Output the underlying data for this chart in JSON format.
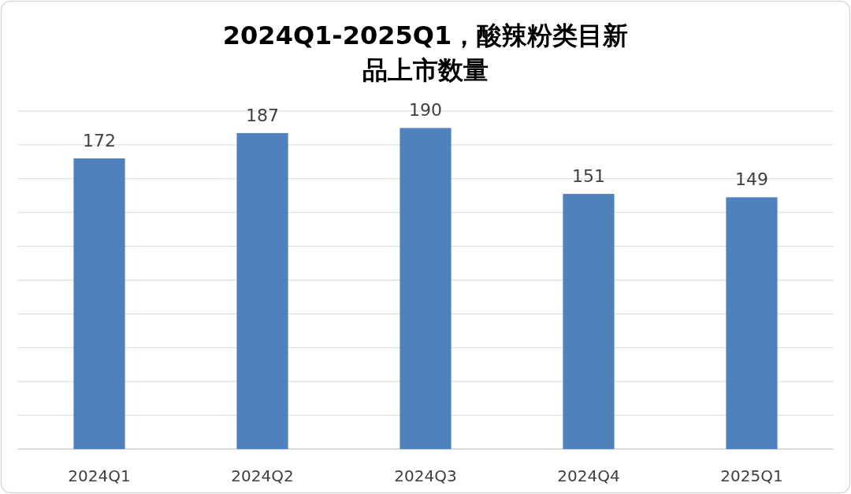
{
  "chart_data": {
    "type": "bar",
    "title": "2024Q1-2025Q1，酸辣粉类目新品上市数量",
    "categories": [
      "2024Q1",
      "2024Q2",
      "2024Q3",
      "2024Q4",
      "2025Q1"
    ],
    "values": [
      172,
      187,
      190,
      151,
      149
    ],
    "color": "#4f81bd",
    "ylim": [
      0,
      200
    ],
    "yticks": [
      {
        "value": 0,
        "label": null
      },
      {
        "value": 20,
        "label": null
      },
      {
        "value": 40,
        "label": null
      },
      {
        "value": 60,
        "label": null
      },
      {
        "value": 80,
        "label": null
      },
      {
        "value": 100,
        "label": null
      },
      {
        "value": 120,
        "label": null
      },
      {
        "value": 140,
        "label": null
      },
      {
        "value": 160,
        "label": null
      },
      {
        "value": 180,
        "label": null
      },
      {
        "value": 200,
        "label": null
      }
    ],
    "tick_labels": "x",
    "grid": "y",
    "data_labels": true
  }
}
